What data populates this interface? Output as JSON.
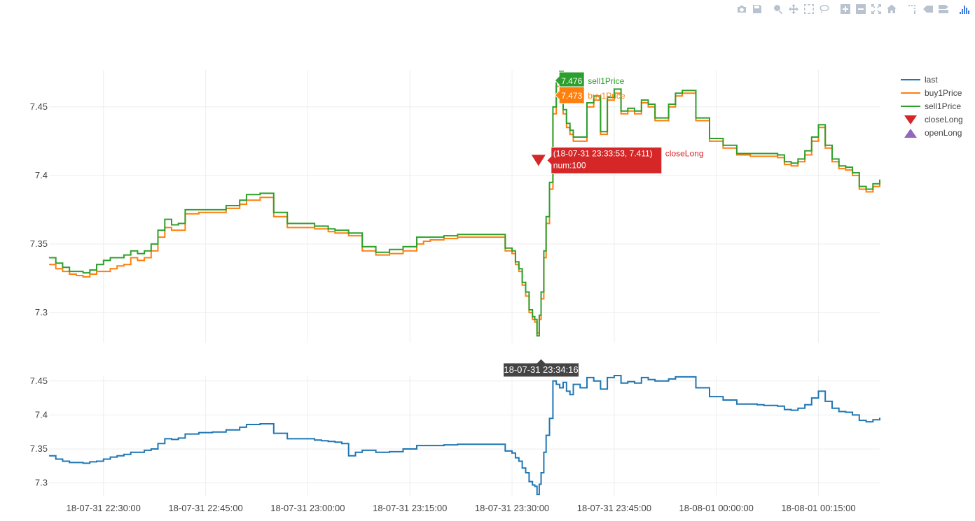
{
  "toolbar": {
    "buttons": [
      {
        "name": "camera-icon"
      },
      {
        "name": "save-icon"
      },
      {
        "name": "zoom-icon"
      },
      {
        "name": "pan-icon"
      },
      {
        "name": "box-select-icon"
      },
      {
        "name": "lasso-icon"
      },
      {
        "name": "zoom-in-icon"
      },
      {
        "name": "zoom-out-icon"
      },
      {
        "name": "autoscale-icon"
      },
      {
        "name": "reset-axes-icon"
      },
      {
        "name": "spike-lines-icon"
      },
      {
        "name": "hover-closest-icon"
      },
      {
        "name": "hover-compare-icon"
      },
      {
        "name": "plotly-logo-icon"
      }
    ]
  },
  "colors": {
    "last": "#1f77b4",
    "buy1Price": "#ff7f0e",
    "sell1Price": "#2ca02c",
    "closeLong": "#d62728",
    "openLong": "#9467bd",
    "grid": "#eeeeee"
  },
  "chart_data": [
    {
      "type": "line",
      "panel": "top",
      "ylim": [
        7.278,
        7.477
      ],
      "yticks": [
        "7.3",
        "7.35",
        "7.4",
        "7.45"
      ],
      "series": [
        {
          "name": "buy1Price",
          "x": [
            "22:22",
            "22:23",
            "22:24",
            "22:25",
            "22:26",
            "22:27",
            "22:28",
            "22:29",
            "22:30",
            "22:31",
            "22:32",
            "22:33",
            "22:34",
            "22:35",
            "22:36",
            "22:37",
            "22:38",
            "22:39",
            "22:40",
            "22:41",
            "22:42",
            "22:44",
            "22:46",
            "22:48",
            "22:50",
            "22:51",
            "22:53",
            "22:55",
            "22:57",
            "22:59",
            "23:01",
            "23:02",
            "23:03",
            "23:04",
            "23:05",
            "23:06",
            "23:07",
            "23:08",
            "23:10",
            "23:12",
            "23:14",
            "23:16",
            "23:17",
            "23:18",
            "23:19",
            "23:20",
            "23:21",
            "23:22",
            "23:23",
            "23:24",
            "23:25",
            "23:26",
            "23:27",
            "23:28",
            "23:29",
            "23:30",
            "23:30:30",
            "23:31",
            "23:31:30",
            "23:32",
            "23:32:30",
            "23:33",
            "23:33:20",
            "23:33:40",
            "23:34",
            "23:34:16",
            "23:34:40",
            "23:35",
            "23:35:30",
            "23:36",
            "23:36:30",
            "23:37",
            "23:37:30",
            "23:38",
            "23:38:30",
            "23:39",
            "23:40",
            "23:41",
            "23:42",
            "23:43",
            "23:44",
            "23:45",
            "23:46",
            "23:47",
            "23:48",
            "23:49",
            "23:50",
            "23:51",
            "23:52",
            "23:53",
            "23:54",
            "23:55",
            "23:57",
            "23:59",
            "00:01",
            "00:03",
            "00:05",
            "00:06",
            "00:07",
            "00:08",
            "00:09",
            "00:10",
            "00:11",
            "00:12",
            "00:13",
            "00:14",
            "00:15",
            "00:16",
            "00:17",
            "00:18",
            "00:19",
            "00:20",
            "00:21",
            "00:22",
            "00:23",
            "00:24"
          ],
          "values": [
            7.335,
            7.332,
            7.33,
            7.328,
            7.327,
            7.326,
            7.328,
            7.33,
            7.33,
            7.332,
            7.334,
            7.335,
            7.34,
            7.338,
            7.34,
            7.345,
            7.355,
            7.362,
            7.36,
            7.36,
            7.372,
            7.373,
            7.373,
            7.376,
            7.379,
            7.382,
            7.384,
            7.37,
            7.362,
            7.362,
            7.361,
            7.361,
            7.359,
            7.358,
            7.358,
            7.356,
            7.356,
            7.345,
            7.342,
            7.343,
            7.345,
            7.35,
            7.352,
            7.353,
            7.353,
            7.354,
            7.354,
            7.355,
            7.355,
            7.355,
            7.355,
            7.355,
            7.355,
            7.355,
            7.345,
            7.343,
            7.335,
            7.33,
            7.32,
            7.312,
            7.3,
            7.295,
            7.293,
            7.285,
            7.295,
            7.31,
            7.34,
            7.365,
            7.39,
            7.445,
            7.465,
            7.473,
            7.445,
            7.435,
            7.43,
            7.425,
            7.425,
            7.45,
            7.455,
            7.43,
            7.455,
            7.46,
            7.445,
            7.447,
            7.445,
            7.453,
            7.45,
            7.44,
            7.44,
            7.45,
            7.458,
            7.46,
            7.44,
            7.425,
            7.42,
            7.415,
            7.414,
            7.414,
            7.414,
            7.414,
            7.413,
            7.408,
            7.407,
            7.41,
            7.415,
            7.425,
            7.435,
            7.42,
            7.41,
            7.405,
            7.404,
            7.4,
            7.39,
            7.388,
            7.392,
            7.395
          ]
        },
        {
          "name": "sell1Price",
          "x": [
            "22:22",
            "22:23",
            "22:24",
            "22:25",
            "22:26",
            "22:27",
            "22:28",
            "22:29",
            "22:30",
            "22:31",
            "22:32",
            "22:33",
            "22:34",
            "22:35",
            "22:36",
            "22:37",
            "22:38",
            "22:39",
            "22:40",
            "22:41",
            "22:42",
            "22:44",
            "22:46",
            "22:48",
            "22:50",
            "22:51",
            "22:53",
            "22:55",
            "22:57",
            "22:59",
            "23:01",
            "23:02",
            "23:03",
            "23:04",
            "23:05",
            "23:06",
            "23:07",
            "23:08",
            "23:10",
            "23:12",
            "23:14",
            "23:16",
            "23:17",
            "23:18",
            "23:19",
            "23:20",
            "23:21",
            "23:22",
            "23:23",
            "23:24",
            "23:25",
            "23:26",
            "23:27",
            "23:28",
            "23:29",
            "23:30",
            "23:30:30",
            "23:31",
            "23:31:30",
            "23:32",
            "23:32:30",
            "23:33",
            "23:33:20",
            "23:33:40",
            "23:34",
            "23:34:16",
            "23:34:40",
            "23:35",
            "23:35:30",
            "23:36",
            "23:36:30",
            "23:37",
            "23:37:30",
            "23:38",
            "23:38:30",
            "23:39",
            "23:40",
            "23:41",
            "23:42",
            "23:43",
            "23:44",
            "23:45",
            "23:46",
            "23:47",
            "23:48",
            "23:49",
            "23:50",
            "23:51",
            "23:52",
            "23:53",
            "23:54",
            "23:55",
            "23:57",
            "23:59",
            "00:01",
            "00:03",
            "00:05",
            "00:06",
            "00:07",
            "00:08",
            "00:09",
            "00:10",
            "00:11",
            "00:12",
            "00:13",
            "00:14",
            "00:15",
            "00:16",
            "00:17",
            "00:18",
            "00:19",
            "00:20",
            "00:21",
            "00:22",
            "00:23",
            "00:24"
          ],
          "values": [
            7.34,
            7.336,
            7.333,
            7.33,
            7.33,
            7.329,
            7.331,
            7.335,
            7.338,
            7.34,
            7.34,
            7.342,
            7.345,
            7.343,
            7.345,
            7.35,
            7.36,
            7.368,
            7.364,
            7.365,
            7.375,
            7.375,
            7.375,
            7.378,
            7.382,
            7.386,
            7.387,
            7.373,
            7.365,
            7.365,
            7.363,
            7.363,
            7.361,
            7.36,
            7.36,
            7.358,
            7.358,
            7.348,
            7.344,
            7.346,
            7.348,
            7.355,
            7.355,
            7.355,
            7.355,
            7.356,
            7.356,
            7.357,
            7.357,
            7.357,
            7.357,
            7.357,
            7.357,
            7.357,
            7.347,
            7.345,
            7.337,
            7.332,
            7.322,
            7.315,
            7.302,
            7.297,
            7.295,
            7.283,
            7.298,
            7.315,
            7.345,
            7.37,
            7.395,
            7.45,
            7.468,
            7.476,
            7.448,
            7.438,
            7.433,
            7.428,
            7.428,
            7.453,
            7.458,
            7.432,
            7.457,
            7.463,
            7.447,
            7.449,
            7.447,
            7.455,
            7.452,
            7.442,
            7.442,
            7.452,
            7.46,
            7.462,
            7.442,
            7.427,
            7.422,
            7.416,
            7.416,
            7.416,
            7.416,
            7.416,
            7.415,
            7.41,
            7.409,
            7.412,
            7.418,
            7.428,
            7.437,
            7.422,
            7.412,
            7.407,
            7.406,
            7.402,
            7.392,
            7.39,
            7.394,
            7.397
          ]
        },
        {
          "name": "closeLong",
          "marker": "triangle-down",
          "x": [
            "23:33:53"
          ],
          "values": [
            7.411
          ]
        }
      ],
      "hover": {
        "sell1Price": {
          "value": "7.476",
          "label": "sell1Price"
        },
        "buy1Price": {
          "value": "7.473",
          "label": "buy1Price"
        },
        "closeLong": {
          "line1": "(18-07-31 23:33:53, 7.411)",
          "line2": "num:100",
          "label": "closeLong"
        }
      }
    },
    {
      "type": "line",
      "panel": "bottom",
      "ylim": [
        7.28,
        7.458
      ],
      "yticks": [
        "7.3",
        "7.35",
        "7.4",
        "7.45"
      ],
      "series": [
        {
          "name": "last",
          "x": [
            "22:22",
            "22:23",
            "22:24",
            "22:25",
            "22:26",
            "22:27",
            "22:28",
            "22:29",
            "22:30",
            "22:31",
            "22:32",
            "22:33",
            "22:34",
            "22:35",
            "22:36",
            "22:37",
            "22:38",
            "22:39",
            "22:40",
            "22:41",
            "22:42",
            "22:44",
            "22:46",
            "22:48",
            "22:50",
            "22:51",
            "22:53",
            "22:55",
            "22:57",
            "22:59",
            "23:01",
            "23:02",
            "23:03",
            "23:04",
            "23:05",
            "23:06",
            "23:07",
            "23:08",
            "23:10",
            "23:12",
            "23:14",
            "23:16",
            "23:17",
            "23:18",
            "23:19",
            "23:20",
            "23:21",
            "23:22",
            "23:23",
            "23:24",
            "23:25",
            "23:26",
            "23:27",
            "23:28",
            "23:29",
            "23:30",
            "23:30:30",
            "23:31",
            "23:31:30",
            "23:32",
            "23:32:30",
            "23:33",
            "23:33:20",
            "23:33:40",
            "23:34",
            "23:34:16",
            "23:34:40",
            "23:35",
            "23:35:30",
            "23:36",
            "23:36:30",
            "23:37",
            "23:37:30",
            "23:38",
            "23:38:30",
            "23:39",
            "23:40",
            "23:41",
            "23:42",
            "23:43",
            "23:44",
            "23:45",
            "23:46",
            "23:47",
            "23:48",
            "23:49",
            "23:50",
            "23:51",
            "23:52",
            "23:53",
            "23:54",
            "23:55",
            "23:57",
            "23:59",
            "00:01",
            "00:03",
            "00:05",
            "00:06",
            "00:07",
            "00:08",
            "00:09",
            "00:10",
            "00:11",
            "00:12",
            "00:13",
            "00:14",
            "00:15",
            "00:16",
            "00:17",
            "00:18",
            "00:19",
            "00:20",
            "00:21",
            "00:22",
            "00:23",
            "00:24"
          ],
          "values": [
            7.34,
            7.335,
            7.332,
            7.33,
            7.33,
            7.329,
            7.331,
            7.332,
            7.335,
            7.338,
            7.34,
            7.342,
            7.345,
            7.345,
            7.348,
            7.35,
            7.358,
            7.365,
            7.364,
            7.366,
            7.372,
            7.374,
            7.375,
            7.378,
            7.382,
            7.386,
            7.387,
            7.373,
            7.365,
            7.365,
            7.363,
            7.362,
            7.361,
            7.36,
            7.358,
            7.34,
            7.345,
            7.348,
            7.345,
            7.346,
            7.35,
            7.355,
            7.355,
            7.355,
            7.355,
            7.356,
            7.356,
            7.357,
            7.357,
            7.357,
            7.357,
            7.357,
            7.357,
            7.357,
            7.347,
            7.344,
            7.337,
            7.332,
            7.322,
            7.315,
            7.302,
            7.297,
            7.295,
            7.283,
            7.298,
            7.315,
            7.345,
            7.37,
            7.395,
            7.45,
            7.445,
            7.44,
            7.448,
            7.435,
            7.43,
            7.445,
            7.44,
            7.455,
            7.45,
            7.438,
            7.455,
            7.458,
            7.447,
            7.449,
            7.447,
            7.455,
            7.452,
            7.45,
            7.45,
            7.453,
            7.456,
            7.456,
            7.44,
            7.427,
            7.422,
            7.416,
            7.416,
            7.415,
            7.414,
            7.414,
            7.413,
            7.408,
            7.407,
            7.41,
            7.415,
            7.425,
            7.435,
            7.42,
            7.41,
            7.405,
            7.404,
            7.4,
            7.392,
            7.39,
            7.393,
            7.396
          ]
        },
        {
          "name": "openLong",
          "marker": "triangle-up",
          "x": [],
          "values": []
        }
      ],
      "hover": {
        "x_label": "18-07-31 23:34:16"
      }
    }
  ],
  "xaxis": {
    "range": [
      "22:22",
      "00:24"
    ],
    "ticks": [
      {
        "t": "22:30",
        "label": "18-07-31 22:30:00"
      },
      {
        "t": "22:45",
        "label": "18-07-31 22:45:00"
      },
      {
        "t": "23:00",
        "label": "18-07-31 23:00:00"
      },
      {
        "t": "23:15",
        "label": "18-07-31 23:15:00"
      },
      {
        "t": "23:30",
        "label": "18-07-31 23:30:00"
      },
      {
        "t": "23:45",
        "label": "18-07-31 23:45:00"
      },
      {
        "t": "00:00",
        "label": "18-08-01 00:00:00"
      },
      {
        "t": "00:15",
        "label": "18-08-01 00:15:00"
      }
    ]
  },
  "legend": {
    "placement": "top-right",
    "items": [
      {
        "label": "last",
        "kind": "line",
        "colorKey": "last"
      },
      {
        "label": "buy1Price",
        "kind": "line",
        "colorKey": "buy1Price"
      },
      {
        "label": "sell1Price",
        "kind": "line",
        "colorKey": "sell1Price"
      },
      {
        "label": "closeLong",
        "kind": "tri-down",
        "colorKey": "closeLong"
      },
      {
        "label": "openLong",
        "kind": "tri-up",
        "colorKey": "openLong"
      }
    ]
  }
}
